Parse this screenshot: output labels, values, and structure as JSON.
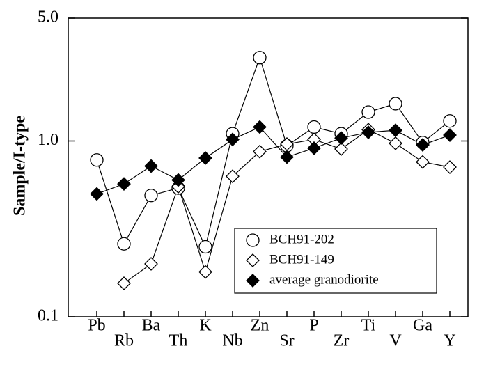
{
  "chart_data": {
    "type": "line",
    "ylabel": "Sample/I-type",
    "log_y": true,
    "ylim": [
      0.1,
      5.0
    ],
    "yticks": [
      0.1,
      {
        "value": 1.0,
        "label": "1.0"
      },
      {
        "value": 5.0,
        "label": "5.0"
      }
    ],
    "categories": [
      "Pb",
      "Rb",
      "Ba",
      "Th",
      "K",
      "Nb",
      "Zn",
      "Sr",
      "P",
      "Zr",
      "Ti",
      "V",
      "Ga",
      "Y"
    ],
    "legend": "lower right",
    "series": [
      {
        "name": "BCH91-202",
        "color": "#000000",
        "marker": "circle",
        "values": [
          0.78,
          0.26,
          0.49,
          0.54,
          0.25,
          1.1,
          2.98,
          0.94,
          1.2,
          1.1,
          1.46,
          1.63,
          0.98,
          1.3
        ]
      },
      {
        "name": "BCH91-149",
        "color": "#000000",
        "marker": "diamond",
        "values": [
          null,
          0.155,
          0.2,
          0.55,
          0.18,
          0.63,
          0.87,
          0.96,
          1.02,
          0.9,
          1.16,
          0.97,
          0.76,
          0.71
        ]
      },
      {
        "name": "average granodiorite",
        "color": "#000000",
        "marker": "filled-diamond",
        "values": [
          0.5,
          0.57,
          0.72,
          0.6,
          0.8,
          1.02,
          1.2,
          0.81,
          0.91,
          1.04,
          1.12,
          1.15,
          0.95,
          1.08
        ]
      }
    ]
  }
}
